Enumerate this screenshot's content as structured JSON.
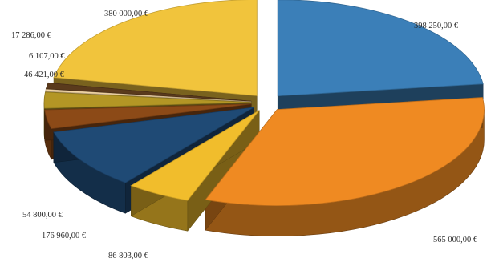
{
  "chart_data": {
    "type": "pie",
    "style": "exploded-3d",
    "title": "",
    "legend": "none",
    "slices": [
      {
        "label": "398 250,00 €",
        "value": 398250,
        "color": "#3b7fb8"
      },
      {
        "label": "565 000,00 €",
        "value": 565000,
        "color": "#ef8a22"
      },
      {
        "label": "86 803,00 €",
        "value": 86803,
        "color": "#f1bd2c"
      },
      {
        "label": "176 960,00 €",
        "value": 176960,
        "color": "#1f4a75"
      },
      {
        "label": "54 800,00 €",
        "value": 54800,
        "color": "#8c4a17"
      },
      {
        "label": "46 421,00 €",
        "value": 46421,
        "color": "#b39625"
      },
      {
        "label": "6 107,00 €",
        "value": 6107,
        "color": "#f2d6a6"
      },
      {
        "label": "17 286,00 €",
        "value": 17286,
        "color": "#5a3a1c"
      },
      {
        "label": "380 000,00 €",
        "value": 380000,
        "color": "#f1c43c"
      }
    ]
  }
}
